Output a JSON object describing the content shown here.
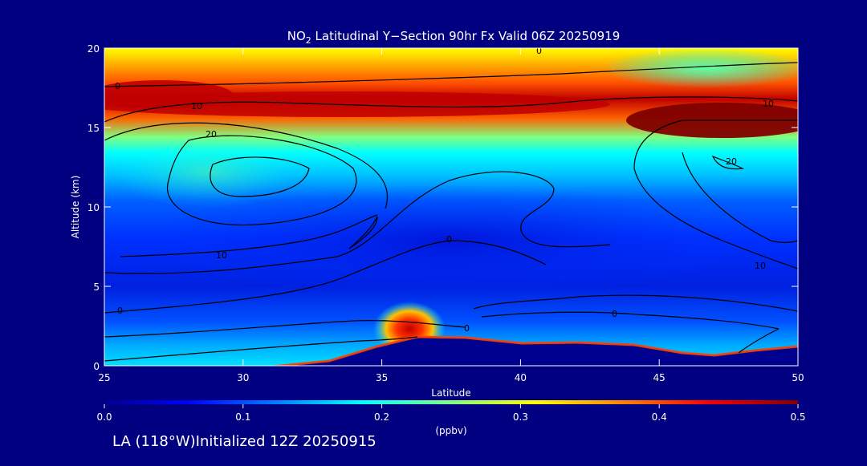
{
  "chart_data": {
    "type": "heatmap",
    "title_prefix": "NO",
    "title_sub": "2",
    "title_rest": " Latitudinal Y−Section 90hr  Fx Valid 06Z 20250919",
    "xlabel": "Latitude",
    "ylabel": "Altitude (km)",
    "xlim": [
      25,
      50
    ],
    "ylim": [
      0,
      20
    ],
    "x_ticks": [
      "25",
      "30",
      "35",
      "40",
      "45",
      "50"
    ],
    "y_ticks": [
      "0",
      "5",
      "10",
      "15",
      "20"
    ],
    "colorbar": {
      "range": [
        0.0,
        0.5
      ],
      "tick_labels": [
        "0.0",
        "0.1",
        "0.2",
        "0.3",
        "0.4",
        "0.5"
      ],
      "unit": "(ppbv)"
    },
    "contour_labels": [
      "0",
      "0",
      "10",
      "20",
      "10",
      "0",
      "0",
      "0",
      "20",
      "10",
      "10",
      "0"
    ],
    "features": [
      {
        "name": "upper-band",
        "lat": [
          25,
          50
        ],
        "alt_km": [
          15,
          17.5
        ],
        "value": 0.5
      },
      {
        "name": "right-upper-max",
        "lat": [
          44,
          50
        ],
        "alt_km": [
          14,
          16.5
        ],
        "value": 0.5
      },
      {
        "name": "low-surface-max",
        "lat": [
          35,
          37
        ],
        "alt_km": [
          1.5,
          3.5
        ],
        "value": 0.5
      },
      {
        "name": "mid-minimum",
        "lat": [
          25,
          50
        ],
        "alt_km": [
          3,
          12
        ],
        "value": 0.05
      }
    ],
    "colors": {
      "background": "#000080",
      "colormap": [
        "#00008f",
        "#0000ff",
        "#0080ff",
        "#00ffff",
        "#80ff80",
        "#ffff00",
        "#ff8000",
        "#ff0000",
        "#800000"
      ]
    }
  },
  "footer": {
    "text": "LA (118°W)Initialized 12Z 20250915"
  }
}
